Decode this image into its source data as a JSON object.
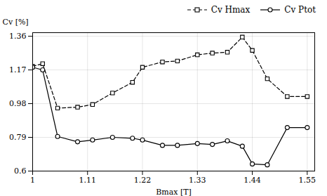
{
  "chart_data": {
    "type": "line",
    "x": [
      1.0,
      1.02,
      1.05,
      1.09,
      1.12,
      1.16,
      1.2,
      1.22,
      1.26,
      1.29,
      1.33,
      1.36,
      1.39,
      1.42,
      1.44,
      1.47,
      1.51,
      1.55
    ],
    "series": [
      {
        "name": "Cv Hmax",
        "color": "#000000",
        "marker": "square",
        "line_style": "dashed",
        "values": [
          1.19,
          1.205,
          0.955,
          0.96,
          0.975,
          1.04,
          1.1,
          1.185,
          1.215,
          1.22,
          1.255,
          1.265,
          1.27,
          1.355,
          1.28,
          1.12,
          1.02,
          1.02
        ]
      },
      {
        "name": "Cv Ptot",
        "color": "#000000",
        "marker": "circle",
        "line_style": "solid",
        "values": [
          1.185,
          1.17,
          0.795,
          0.765,
          0.775,
          0.79,
          0.785,
          0.775,
          0.745,
          0.745,
          0.755,
          0.75,
          0.77,
          0.74,
          0.64,
          0.635,
          0.845,
          0.845
        ]
      }
    ],
    "x_label": "Bmax [T]",
    "y_label": "Cv [%]",
    "xlim": [
      1.0,
      1.565
    ],
    "ylim": [
      0.6,
      1.38
    ],
    "xticks": [
      1,
      1.11,
      1.22,
      1.33,
      1.44,
      1.55
    ],
    "yticks": [
      0.6,
      0.79,
      0.98,
      1.17,
      1.36
    ],
    "grid": true,
    "legend": "right"
  }
}
